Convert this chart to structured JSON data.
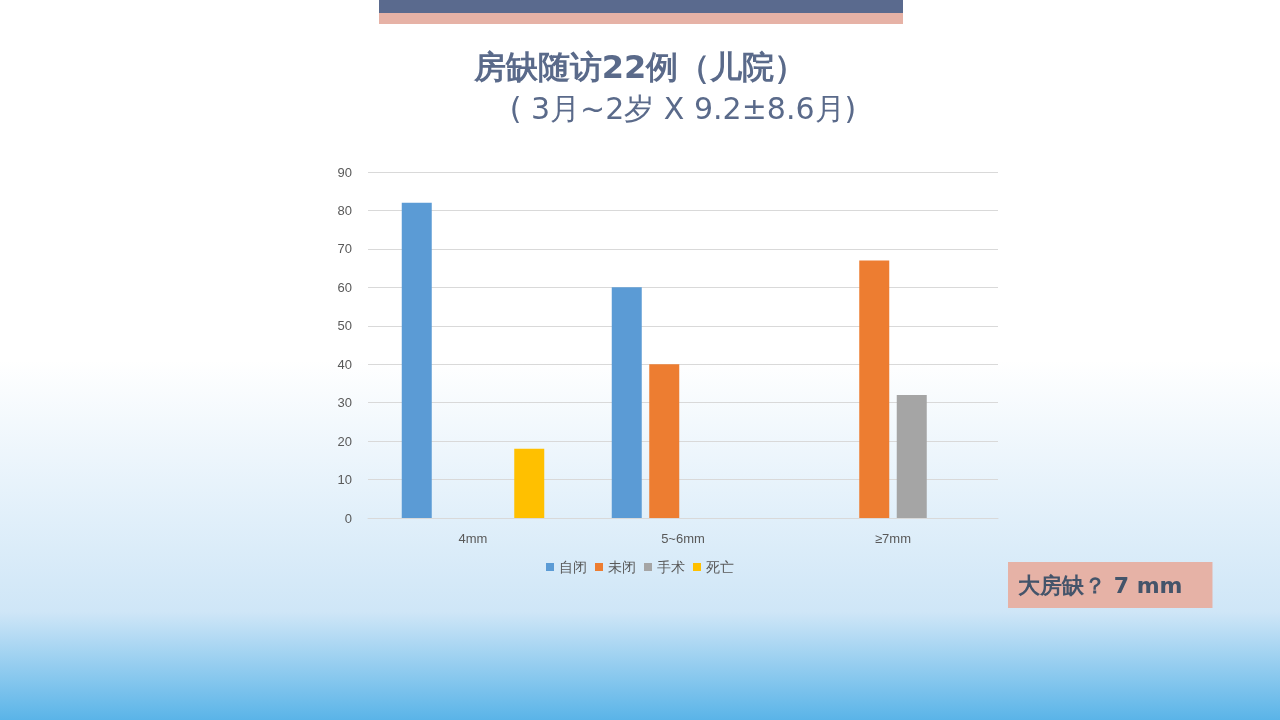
{
  "chart_data": {
    "type": "bar",
    "title": "房缺随访22例（儿院）",
    "subtitle": "( 3月~2岁 X 9.2±8.6月)",
    "categories": [
      "4mm",
      "5~6mm",
      "≥7mm"
    ],
    "series": [
      {
        "name": "自闭",
        "color": "#5b9bd5",
        "values": [
          82,
          60,
          null
        ]
      },
      {
        "name": "未闭",
        "color": "#ed7d31",
        "values": [
          null,
          40,
          67
        ]
      },
      {
        "name": "手术",
        "color": "#a5a5a5",
        "values": [
          null,
          null,
          32
        ]
      },
      {
        "name": "死亡",
        "color": "#ffc000",
        "values": [
          18,
          null,
          null
        ]
      }
    ],
    "ylim": [
      0,
      90
    ],
    "yticks": [
      0,
      10,
      20,
      30,
      40,
      50,
      60,
      70,
      80,
      90
    ],
    "grid": "y",
    "legend": "bottom",
    "annotations": [
      "大房缺？ 7 mm"
    ]
  }
}
